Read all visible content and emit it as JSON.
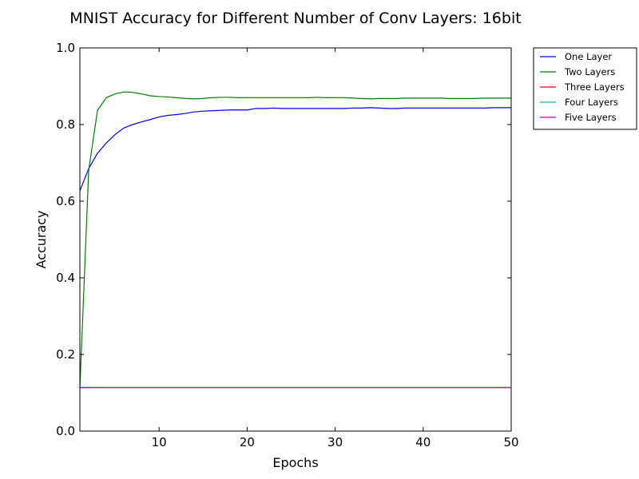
{
  "chart_data": {
    "type": "line",
    "title": "MNIST Accuracy for Different Number of Conv Layers: 16bit",
    "xlabel": "Epochs",
    "ylabel": "Accuracy",
    "xlim": [
      1,
      50
    ],
    "ylim": [
      0.0,
      1.0
    ],
    "xticks": [
      10,
      20,
      30,
      40,
      50
    ],
    "xtick_labels": [
      "10",
      "20",
      "30",
      "40",
      "50"
    ],
    "yticks": [
      0.0,
      0.2,
      0.4,
      0.6,
      0.8,
      1.0
    ],
    "ytick_labels": [
      "0.0",
      "0.2",
      "0.4",
      "0.6",
      "0.8",
      "1.0"
    ],
    "grid": false,
    "legend_position": "outside-top-right",
    "x": [
      1,
      2,
      3,
      4,
      5,
      6,
      7,
      8,
      9,
      10,
      11,
      12,
      13,
      14,
      15,
      16,
      17,
      18,
      19,
      20,
      21,
      22,
      23,
      24,
      25,
      26,
      27,
      28,
      29,
      30,
      31,
      32,
      33,
      34,
      35,
      36,
      37,
      38,
      39,
      40,
      41,
      42,
      43,
      44,
      45,
      46,
      47,
      48,
      49,
      50
    ],
    "series": [
      {
        "name": "One Layer",
        "color": "#0000ff",
        "values": [
          0.627,
          0.685,
          0.725,
          0.752,
          0.774,
          0.791,
          0.8,
          0.807,
          0.813,
          0.82,
          0.824,
          0.826,
          0.829,
          0.833,
          0.835,
          0.836,
          0.837,
          0.838,
          0.838,
          0.838,
          0.842,
          0.842,
          0.843,
          0.842,
          0.842,
          0.842,
          0.842,
          0.842,
          0.842,
          0.842,
          0.842,
          0.843,
          0.843,
          0.844,
          0.843,
          0.842,
          0.842,
          0.843,
          0.843,
          0.843,
          0.843,
          0.843,
          0.843,
          0.843,
          0.843,
          0.843,
          0.843,
          0.844,
          0.844,
          0.844
        ]
      },
      {
        "name": "Two Layers",
        "color": "#008000",
        "values": [
          0.112,
          0.68,
          0.837,
          0.87,
          0.88,
          0.885,
          0.884,
          0.88,
          0.875,
          0.873,
          0.872,
          0.87,
          0.868,
          0.867,
          0.868,
          0.87,
          0.871,
          0.871,
          0.87,
          0.87,
          0.87,
          0.87,
          0.87,
          0.87,
          0.87,
          0.87,
          0.87,
          0.871,
          0.87,
          0.87,
          0.87,
          0.869,
          0.868,
          0.867,
          0.868,
          0.868,
          0.868,
          0.869,
          0.869,
          0.869,
          0.869,
          0.869,
          0.868,
          0.868,
          0.868,
          0.868,
          0.869,
          0.869,
          0.869,
          0.869
        ]
      },
      {
        "name": "Three Layers",
        "color": "#ff0000",
        "values": [
          0.1135,
          0.1135,
          0.1135,
          0.1135,
          0.1135,
          0.1135,
          0.1135,
          0.1135,
          0.1135,
          0.1135,
          0.1135,
          0.1135,
          0.1135,
          0.1135,
          0.1135,
          0.1135,
          0.1135,
          0.1135,
          0.1135,
          0.1135,
          0.1135,
          0.1135,
          0.1135,
          0.1135,
          0.1135,
          0.1135,
          0.1135,
          0.1135,
          0.1135,
          0.1135,
          0.1135,
          0.1135,
          0.1135,
          0.1135,
          0.1135,
          0.1135,
          0.1135,
          0.1135,
          0.1135,
          0.1135,
          0.1135,
          0.1135,
          0.1135,
          0.1135,
          0.1135,
          0.1135,
          0.1135,
          0.1135,
          0.1135,
          0.1135
        ]
      },
      {
        "name": "Four Layers",
        "color": "#00bfbf",
        "values": [
          0.1135,
          0.1135,
          0.1135,
          0.1135,
          0.1135,
          0.1135,
          0.1135,
          0.1135,
          0.1135,
          0.1135,
          0.1135,
          0.1135,
          0.1135,
          0.1135,
          0.1135,
          0.1135,
          0.1135,
          0.1135,
          0.1135,
          0.1135,
          0.1135,
          0.1135,
          0.1135,
          0.1135,
          0.1135,
          0.1135,
          0.1135,
          0.1135,
          0.1135,
          0.1135,
          0.1135,
          0.1135,
          0.1135,
          0.1135,
          0.1135,
          0.1135,
          0.1135,
          0.1135,
          0.1135,
          0.1135,
          0.1135,
          0.1135,
          0.1135,
          0.1135,
          0.1135,
          0.1135,
          0.1135,
          0.1135,
          0.1135,
          0.1135
        ]
      },
      {
        "name": "Five Layers",
        "color": "#bf00bf",
        "values": [
          0.1135,
          0.1135,
          0.1135,
          0.1135,
          0.1135,
          0.1135,
          0.1135,
          0.1135,
          0.1135,
          0.1135,
          0.1135,
          0.1135,
          0.1135,
          0.1135,
          0.1135,
          0.1135,
          0.1135,
          0.1135,
          0.1135,
          0.1135,
          0.1135,
          0.1135,
          0.1135,
          0.1135,
          0.1135,
          0.1135,
          0.1135,
          0.1135,
          0.1135,
          0.1135,
          0.1135,
          0.1135,
          0.1135,
          0.1135,
          0.1135,
          0.1135,
          0.1135,
          0.1135,
          0.1135,
          0.1135,
          0.1135,
          0.1135,
          0.1135,
          0.1135,
          0.1135,
          0.1135,
          0.1135,
          0.1135,
          0.1135,
          0.1135
        ]
      }
    ]
  }
}
